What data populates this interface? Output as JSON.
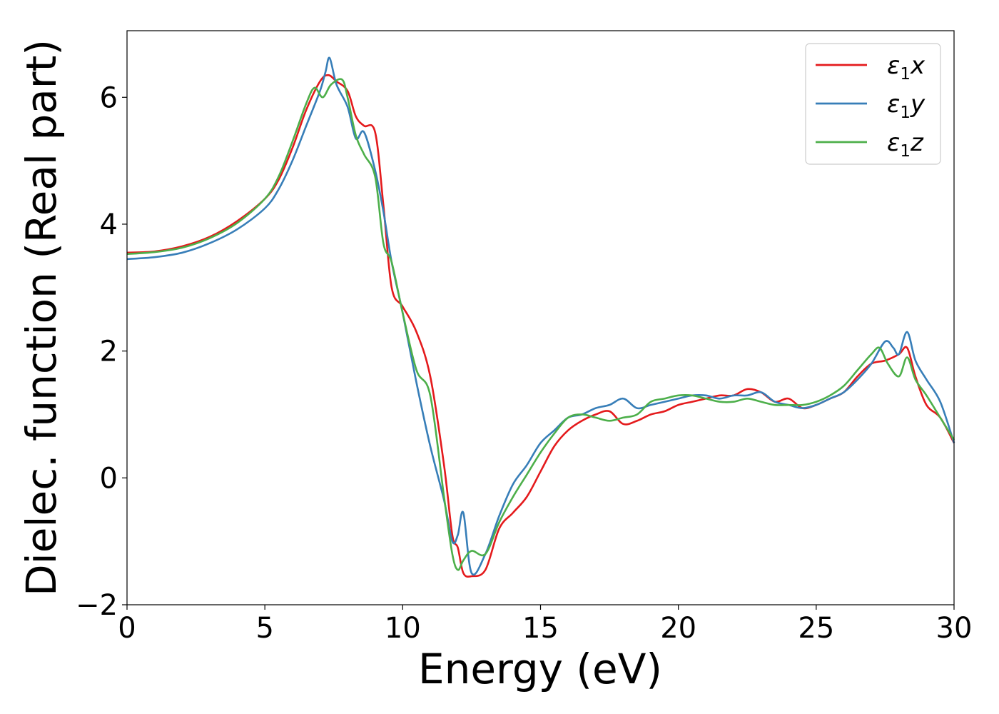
{
  "chart_data": {
    "type": "line",
    "xlabel": "Energy (eV)",
    "ylabel": "Dielec. function (Real part)",
    "xlim": [
      0,
      30
    ],
    "ylim": [
      -2,
      7.05
    ],
    "xticks": [
      0,
      5,
      10,
      15,
      20,
      25,
      30
    ],
    "xtick_labels": [
      "0",
      "5",
      "10",
      "15",
      "20",
      "25",
      "30"
    ],
    "yticks": [
      -2,
      0,
      2,
      4,
      6
    ],
    "ytick_labels": [
      "−2",
      "0",
      "2",
      "4",
      "6"
    ],
    "grid": false,
    "legend_position": "top-right",
    "series": [
      {
        "name": "ε1x",
        "legend_base": "ε",
        "legend_sub": "1",
        "legend_suffix": "x",
        "color": "#e41a1c",
        "x": [
          0,
          1,
          2,
          3,
          4,
          5,
          5.5,
          6,
          6.5,
          7,
          7.3,
          7.6,
          8.0,
          8.3,
          8.6,
          9.0,
          9.3,
          9.6,
          10.0,
          10.5,
          11.0,
          11.5,
          11.8,
          12.0,
          12.2,
          12.5,
          13.0,
          13.5,
          14.0,
          14.5,
          15.0,
          15.5,
          16.0,
          16.5,
          17.0,
          17.5,
          18.0,
          18.5,
          19.0,
          19.5,
          20.0,
          20.5,
          21.0,
          21.5,
          22.0,
          22.5,
          23.0,
          23.5,
          24.0,
          24.5,
          25.0,
          25.5,
          26.0,
          26.5,
          27.0,
          27.5,
          28.0,
          28.3,
          28.6,
          29.0,
          29.5,
          30.0
        ],
        "y": [
          3.55,
          3.57,
          3.65,
          3.8,
          4.05,
          4.4,
          4.7,
          5.2,
          5.8,
          6.25,
          6.35,
          6.25,
          6.1,
          5.7,
          5.55,
          5.45,
          4.3,
          3.0,
          2.7,
          2.3,
          1.6,
          0.2,
          -0.9,
          -1.1,
          -1.5,
          -1.55,
          -1.45,
          -0.8,
          -0.55,
          -0.3,
          0.1,
          0.5,
          0.75,
          0.9,
          1.0,
          1.05,
          0.85,
          0.9,
          1.0,
          1.05,
          1.15,
          1.2,
          1.25,
          1.3,
          1.3,
          1.4,
          1.35,
          1.2,
          1.25,
          1.1,
          1.15,
          1.25,
          1.35,
          1.6,
          1.8,
          1.85,
          1.95,
          2.05,
          1.6,
          1.15,
          0.95,
          0.55
        ]
      },
      {
        "name": "ε1y",
        "legend_base": "ε",
        "legend_sub": "1",
        "legend_suffix": "y",
        "color": "#377eb8",
        "x": [
          0,
          1,
          2,
          3,
          4,
          5,
          5.5,
          6,
          6.5,
          7,
          7.2,
          7.35,
          7.6,
          8.0,
          8.3,
          8.6,
          9.0,
          9.3,
          9.6,
          10.0,
          10.5,
          11.0,
          11.5,
          11.8,
          12.0,
          12.2,
          12.5,
          13.0,
          13.5,
          14.0,
          14.5,
          15.0,
          15.5,
          16.0,
          16.5,
          17.0,
          17.5,
          18.0,
          18.5,
          19.0,
          19.5,
          20.0,
          20.5,
          21.0,
          21.5,
          22.0,
          22.5,
          23.0,
          23.5,
          24.0,
          24.5,
          25.0,
          25.5,
          26.0,
          26.5,
          27.0,
          27.5,
          27.8,
          28.0,
          28.3,
          28.6,
          29.0,
          29.5,
          30.0
        ],
        "y": [
          3.45,
          3.48,
          3.55,
          3.7,
          3.92,
          4.25,
          4.55,
          5.0,
          5.55,
          6.1,
          6.4,
          6.62,
          6.2,
          5.85,
          5.35,
          5.45,
          4.85,
          4.2,
          3.4,
          2.6,
          1.5,
          0.5,
          -0.35,
          -1.0,
          -0.9,
          -0.55,
          -1.5,
          -1.2,
          -0.6,
          -0.1,
          0.2,
          0.55,
          0.75,
          0.95,
          1.0,
          1.1,
          1.15,
          1.25,
          1.1,
          1.15,
          1.2,
          1.25,
          1.3,
          1.3,
          1.25,
          1.3,
          1.3,
          1.35,
          1.2,
          1.15,
          1.1,
          1.15,
          1.25,
          1.35,
          1.55,
          1.8,
          2.15,
          2.05,
          1.95,
          2.3,
          1.85,
          1.55,
          1.2,
          0.55
        ]
      },
      {
        "name": "ε1z",
        "legend_base": "ε",
        "legend_sub": "1",
        "legend_suffix": "z",
        "color": "#4daf4a",
        "x": [
          0,
          1,
          2,
          3,
          4,
          5,
          5.5,
          6,
          6.5,
          6.8,
          7.1,
          7.4,
          7.8,
          8.0,
          8.3,
          8.6,
          9.0,
          9.3,
          9.6,
          10.0,
          10.5,
          11.0,
          11.5,
          11.8,
          12.0,
          12.2,
          12.5,
          13.0,
          13.5,
          14.0,
          14.5,
          15.0,
          15.5,
          16.0,
          16.5,
          17.0,
          17.5,
          18.0,
          18.5,
          19.0,
          19.5,
          20.0,
          20.5,
          21.0,
          21.5,
          22.0,
          22.5,
          23.0,
          23.5,
          24.0,
          24.5,
          25.0,
          25.5,
          26.0,
          26.5,
          27.0,
          27.3,
          27.6,
          28.0,
          28.3,
          28.6,
          29.0,
          29.5,
          30.0
        ],
        "y": [
          3.53,
          3.56,
          3.63,
          3.78,
          4.02,
          4.4,
          4.75,
          5.3,
          5.9,
          6.15,
          6.0,
          6.2,
          6.28,
          6.0,
          5.4,
          5.1,
          4.75,
          3.7,
          3.4,
          2.6,
          1.7,
          1.3,
          -0.3,
          -1.2,
          -1.45,
          -1.3,
          -1.15,
          -1.2,
          -0.7,
          -0.3,
          0.05,
          0.4,
          0.7,
          0.95,
          1.0,
          0.95,
          0.9,
          0.95,
          1.0,
          1.2,
          1.25,
          1.3,
          1.3,
          1.25,
          1.2,
          1.2,
          1.25,
          1.2,
          1.15,
          1.15,
          1.15,
          1.2,
          1.3,
          1.45,
          1.7,
          1.95,
          2.05,
          1.8,
          1.6,
          1.9,
          1.55,
          1.3,
          0.95,
          0.6
        ]
      }
    ]
  }
}
